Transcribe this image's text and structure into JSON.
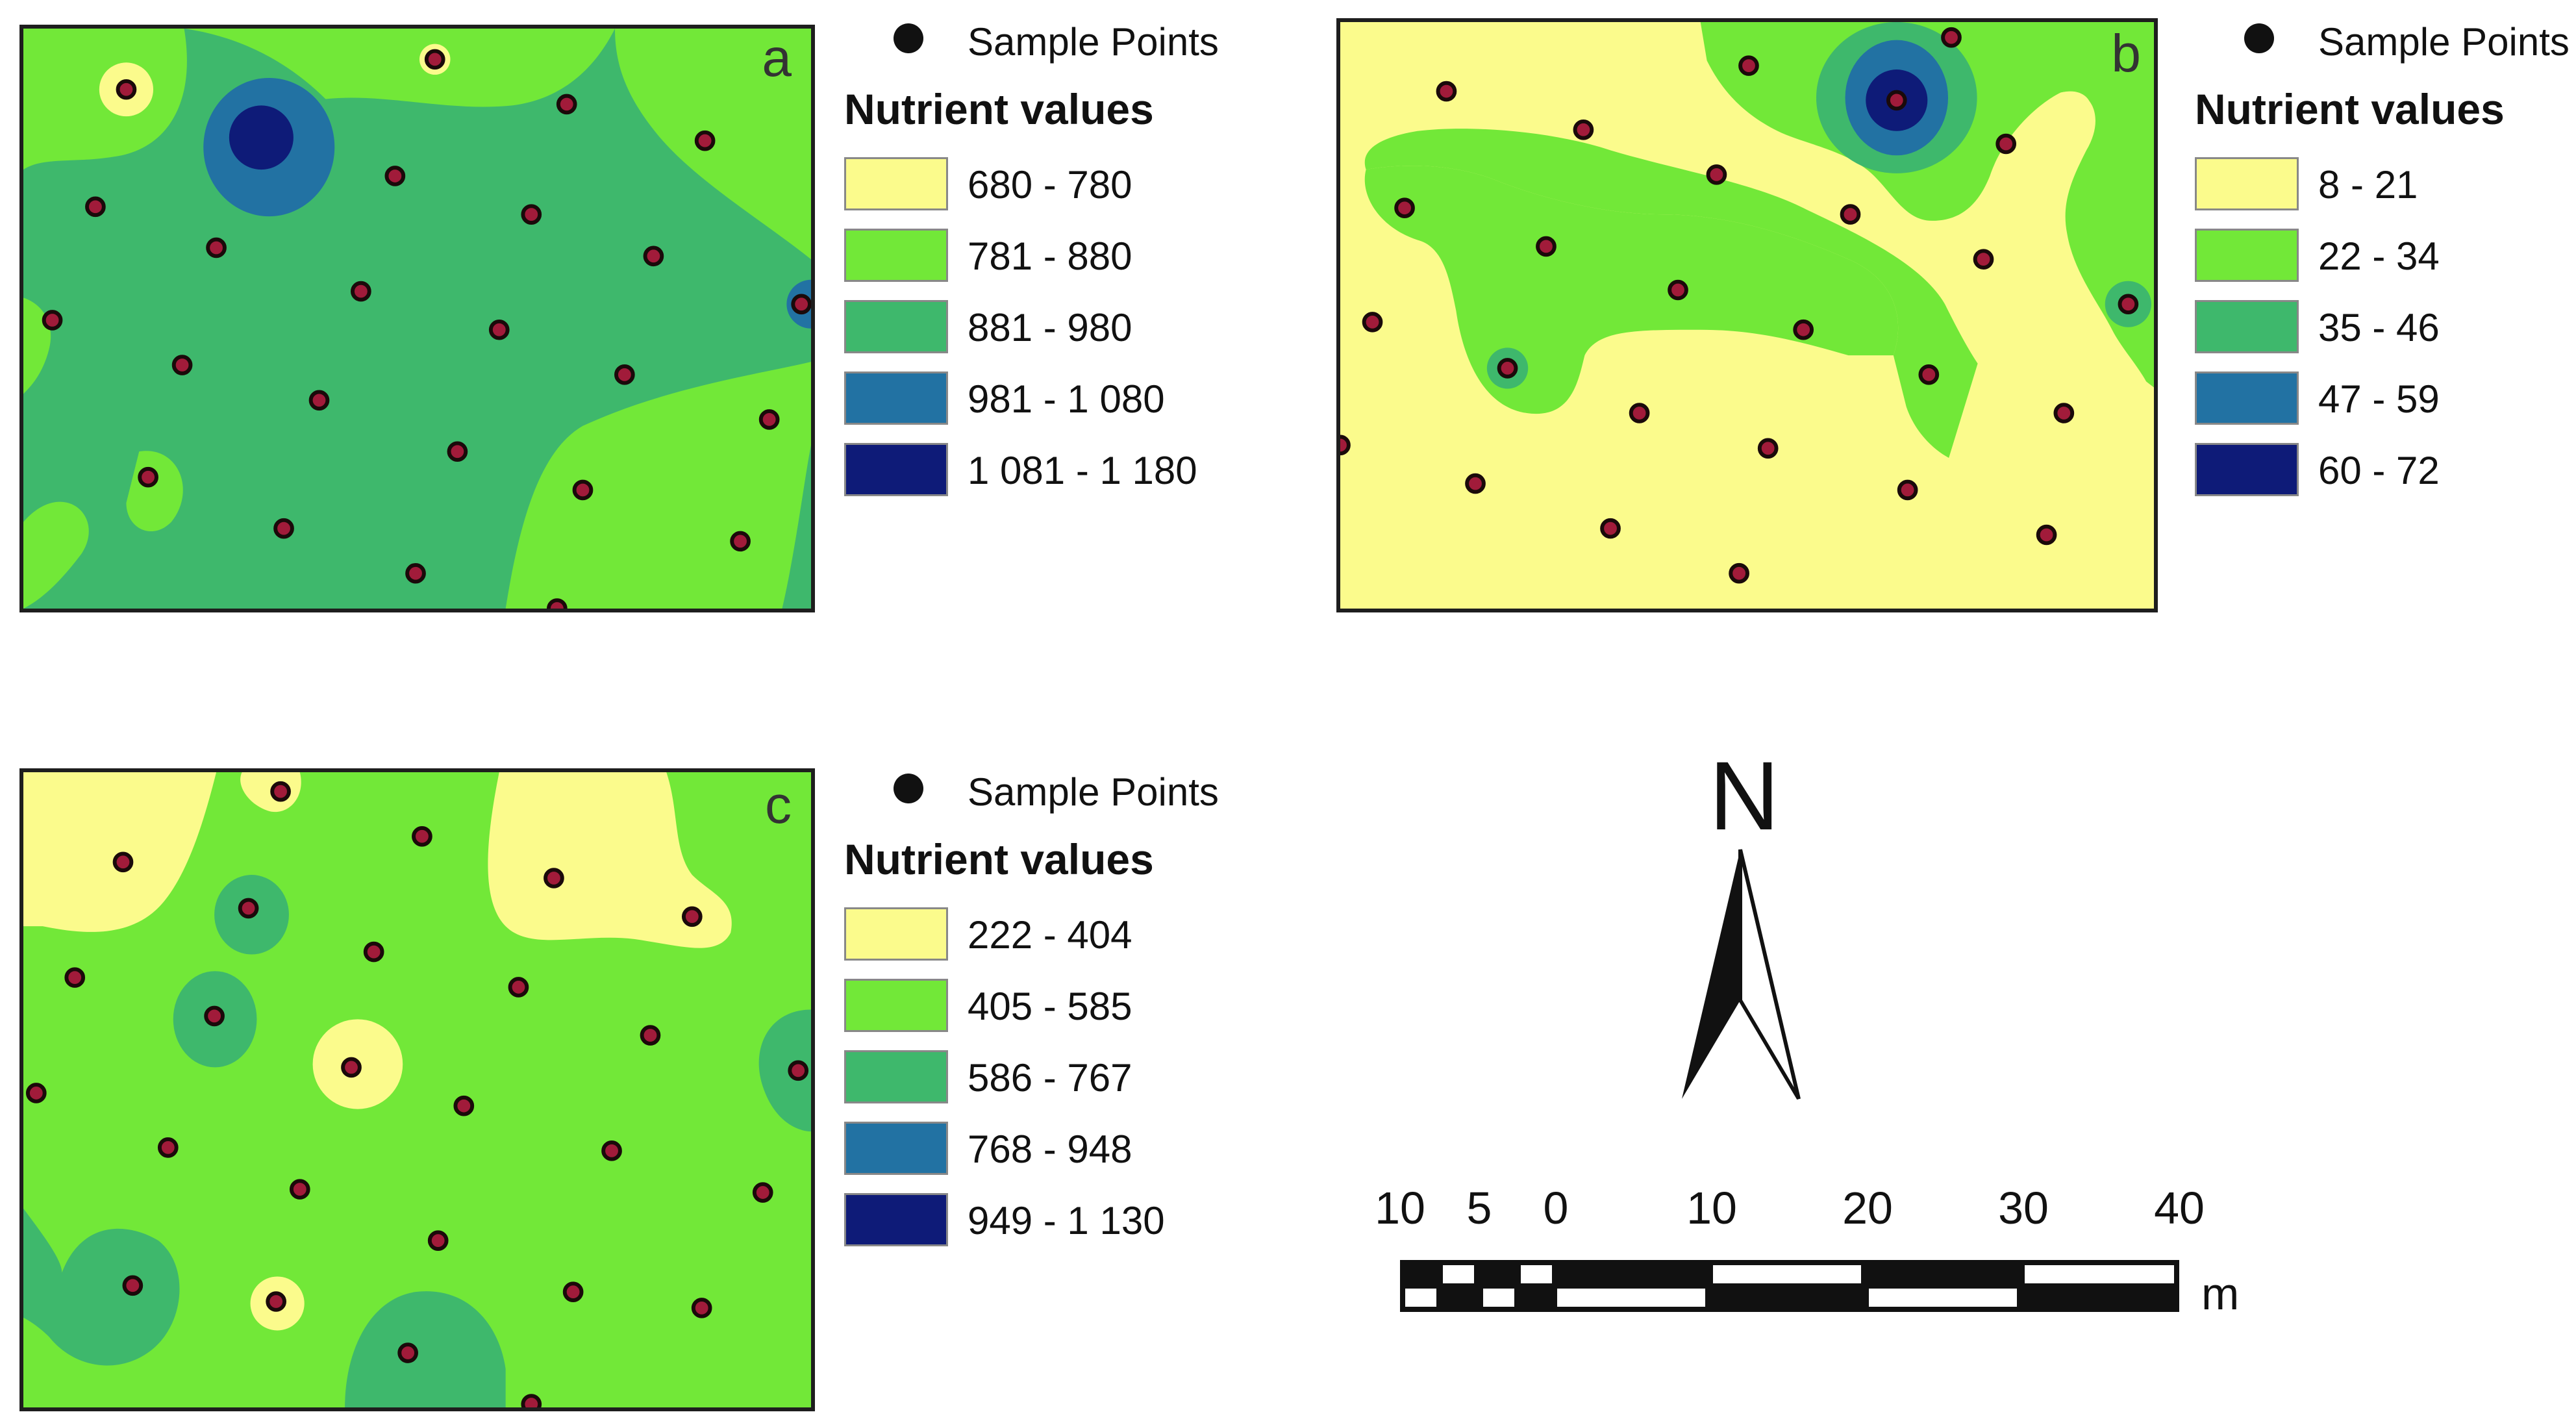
{
  "maps": [
    {
      "id": "a",
      "letter": "a",
      "colors": [
        "#fbfb8c",
        "#72e838",
        "#3eb86c",
        "#2272a3",
        "#0e1b78"
      ],
      "legend": {
        "sample_label": "Sample Points",
        "title": "Nutrient values",
        "classes": [
          {
            "label": "680 - 780",
            "color": "#fbfb8c"
          },
          {
            "label": "781 - 880",
            "color": "#72e838"
          },
          {
            "label": "881 - 980",
            "color": "#3eb86c"
          },
          {
            "label": "981 - 1 080",
            "color": "#2272a3"
          },
          {
            "label": "1 081 - 1 180",
            "color": "#0e1b78"
          }
        ]
      }
    },
    {
      "id": "b",
      "letter": "b",
      "colors": [
        "#fbfb8c",
        "#72e838",
        "#3eb86c",
        "#2272a3",
        "#0e1b78"
      ],
      "legend": {
        "sample_label": "Sample Points",
        "title": "Nutrient values",
        "classes": [
          {
            "label": "8 - 21",
            "color": "#fbfb8c"
          },
          {
            "label": "22 - 34",
            "color": "#72e838"
          },
          {
            "label": "35 - 46",
            "color": "#3eb86c"
          },
          {
            "label": "47 - 59",
            "color": "#2272a3"
          },
          {
            "label": "60 - 72",
            "color": "#0e1b78"
          }
        ]
      }
    },
    {
      "id": "c",
      "letter": "c",
      "colors": [
        "#fbfb8c",
        "#72e838",
        "#3eb86c",
        "#2272a3",
        "#0e1b78"
      ],
      "legend": {
        "sample_label": "Sample Points",
        "title": "Nutrient values",
        "classes": [
          {
            "label": "222 - 404",
            "color": "#fbfb8c"
          },
          {
            "label": "405 - 585",
            "color": "#72e838"
          },
          {
            "label": "586 - 767",
            "color": "#3eb86c"
          },
          {
            "label": "768 - 948",
            "color": "#2272a3"
          },
          {
            "label": "949 - 1 130",
            "color": "#0e1b78"
          }
        ]
      }
    }
  ],
  "north_arrow": {
    "label": "N"
  },
  "scale_bar": {
    "ticks": [
      "10",
      "5",
      "0",
      "10",
      "20",
      "30",
      "40"
    ],
    "unit": "m"
  },
  "sample_point_color": "#a11b3a"
}
